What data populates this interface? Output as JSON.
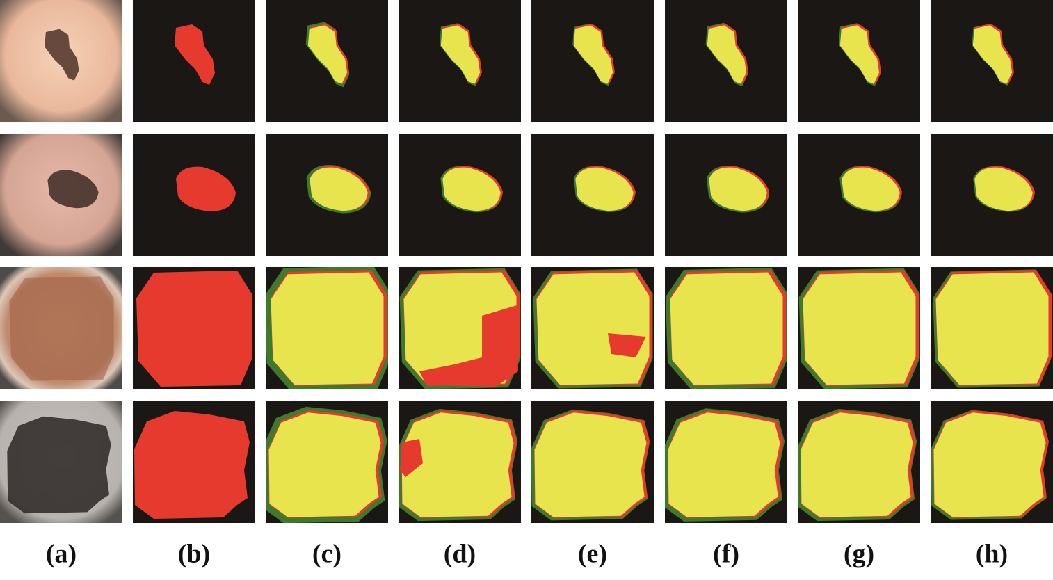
{
  "figure": {
    "column_labels": [
      "(a)",
      "(b)",
      "(c)",
      "(d)",
      "(e)",
      "(f)",
      "(g)",
      "(h)"
    ]
  }
}
